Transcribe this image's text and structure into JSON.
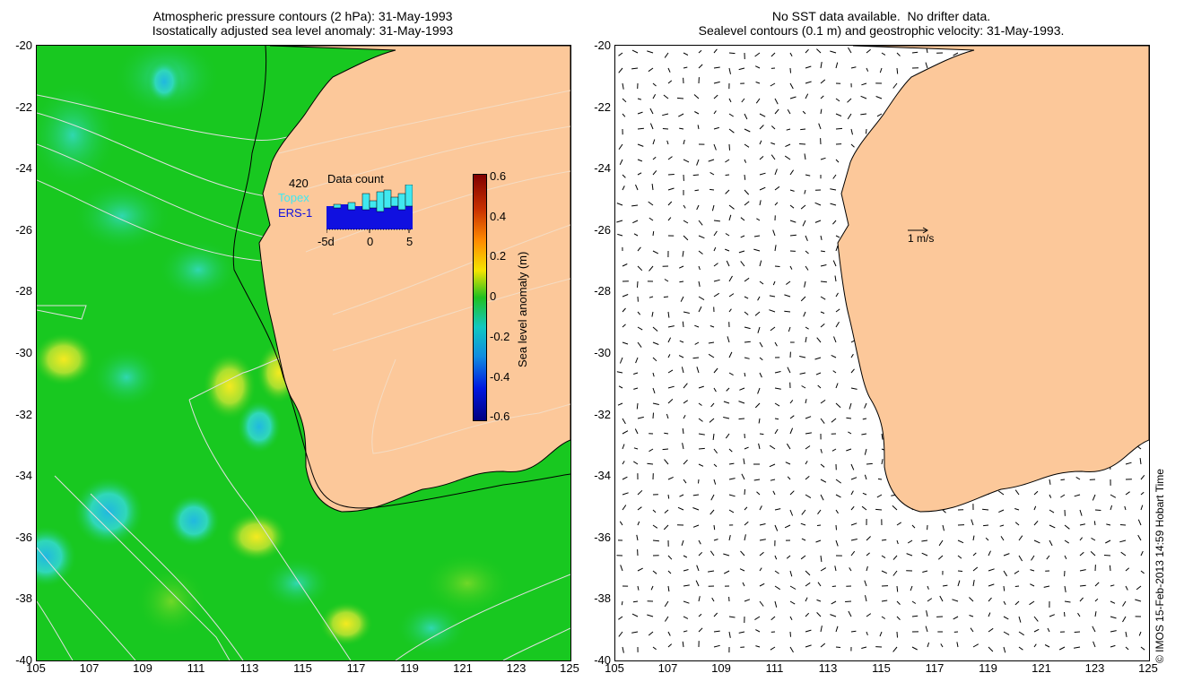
{
  "titles": {
    "left_line1": "Atmospheric pressure contours (2 hPa): 31-May-1993",
    "left_line2": "Isostatically adjusted sea level anomaly: 31-May-1993",
    "right_line1": "No SST data available.  No drifter data.",
    "right_line2": "Sealevel contours (0.1 m) and geostrophic velocity: 31-May-1993."
  },
  "axes": {
    "lat_ticks": [
      "-20",
      "-22",
      "-24",
      "-26",
      "-28",
      "-30",
      "-32",
      "-34",
      "-36",
      "-38",
      "-40"
    ],
    "lon_ticks": [
      "105",
      "107",
      "109",
      "111",
      "113",
      "115",
      "117",
      "119",
      "121",
      "123",
      "125"
    ],
    "lat_range": [
      -40,
      -20
    ],
    "lon_range": [
      105,
      125
    ]
  },
  "colorbar": {
    "label": "Sea level anomaly (m)",
    "ticks": [
      "0.6",
      "0.4",
      "0.2",
      "0",
      "-0.2",
      "-0.4",
      "-0.6"
    ],
    "range": [
      -0.6,
      0.6
    ]
  },
  "data_count_inset": {
    "title": "Data count",
    "max_label": "420",
    "series": [
      {
        "name": "Topex",
        "color": "#40e8f0"
      },
      {
        "name": "ERS-1",
        "color": "#1010e0"
      }
    ],
    "x_ticks": [
      "-5d",
      "0",
      "5"
    ]
  },
  "velocity_scale": {
    "label": "1 m/s"
  },
  "copyright": "© IMOS 15-Feb-2013 14:59 Hobart Time",
  "colors": {
    "land": "#fcc89a",
    "ocean_base": "#18c820",
    "topex": "#40e8f0",
    "ers1": "#1010e0"
  }
}
